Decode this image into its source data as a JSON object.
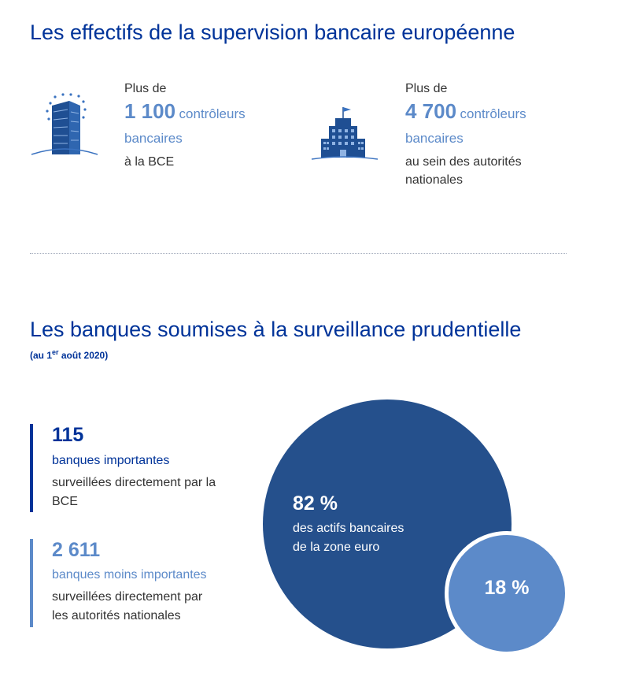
{
  "section1": {
    "title": "Les effectifs de la supervision bancaire européenne",
    "ecb": {
      "prefix": "Plus de",
      "number": "1 100",
      "unit_line1": "contrôleurs",
      "unit_line2": "bancaires",
      "suffix": "à la BCE",
      "icon": "ecb-tower-icon"
    },
    "national": {
      "prefix": "Plus de",
      "number": "4 700",
      "unit_line1": "contrôleurs",
      "unit_line2": "bancaires",
      "suffix_line1": "au sein des autorités",
      "suffix_line2": "nationales",
      "icon": "national-building-icon"
    }
  },
  "section2": {
    "title": "Les banques soumises à la surveillance prudentielle",
    "subtitle_pre": "(au 1",
    "subtitle_sup": "er",
    "subtitle_post": " août 2020)",
    "significant": {
      "number": "115",
      "label": "banques importantes",
      "desc_line1": "surveillées directement par la",
      "desc_line2": "BCE"
    },
    "less_significant": {
      "number": "2 611",
      "label": "banques moins importantes",
      "desc_line1": "surveillées directement par",
      "desc_line2": "les autorités nationales"
    },
    "big_circle": {
      "percent": "82 %",
      "line1": "des actifs bancaires",
      "line2": "de la zone euro",
      "value": 82
    },
    "small_circle": {
      "percent": "18 %",
      "value": 18
    }
  },
  "colors": {
    "dark_blue": "#003399",
    "navy": "#25508c",
    "light_blue": "#5c8ac9"
  }
}
